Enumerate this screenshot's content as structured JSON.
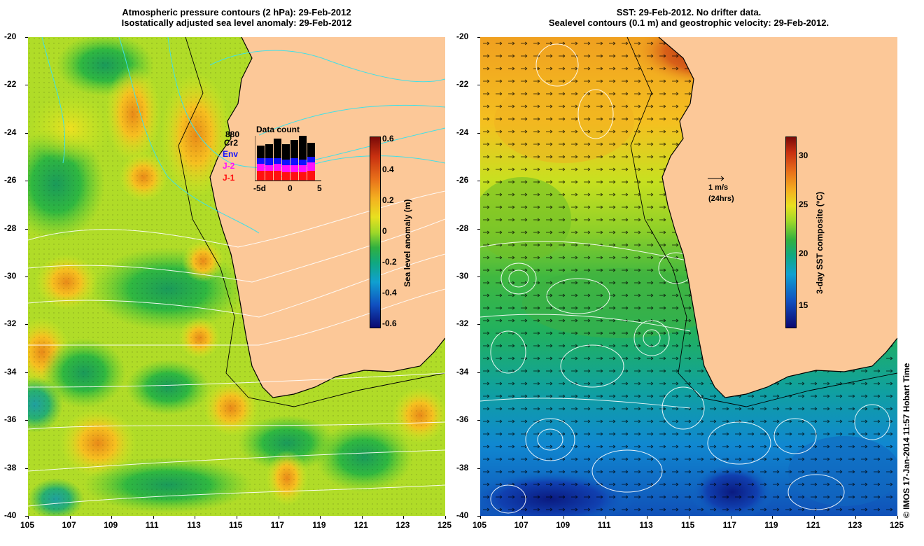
{
  "left_panel": {
    "title_line1": "Atmospheric pressure contours (2 hPa): 29-Feb-2012",
    "title_line2": "Isostatically adjusted sea level anomaly: 29-Feb-2012",
    "colorbar": {
      "label": "Sea level anomaly (m)",
      "ticks": [
        "0.6",
        "0.4",
        "0.2",
        "0",
        "-0.2",
        "-0.4",
        "-0.6"
      ]
    },
    "data_count": {
      "title": "Data count",
      "sources": [
        {
          "label": "880",
          "color": "#000000"
        },
        {
          "label": "Cr2",
          "color": "#000000"
        },
        {
          "label": "Env",
          "color": "#1010ff"
        },
        {
          "label": "J-2",
          "color": "#ff10ff"
        },
        {
          "label": "J-1",
          "color": "#ff1010"
        }
      ],
      "x_ticks": [
        "-5d",
        "0",
        "5"
      ]
    }
  },
  "right_panel": {
    "title_line1": "SST: 29-Feb-2012. No drifter data.",
    "title_line2": "Sealevel contours (0.1 m) and geostrophic velocity: 29-Feb-2012.",
    "velocity_legend": {
      "line1": "1 m/s",
      "line2": "(24hrs)"
    },
    "colorbar": {
      "label": "3-day SST composite (°C)",
      "ticks": [
        "30",
        "25",
        "20",
        "15"
      ]
    }
  },
  "axes": {
    "y_ticks": [
      "-20",
      "-22",
      "-24",
      "-26",
      "-28",
      "-30",
      "-32",
      "-34",
      "-36",
      "-38",
      "-40"
    ],
    "x_ticks": [
      "105",
      "107",
      "109",
      "111",
      "113",
      "115",
      "117",
      "119",
      "121",
      "123",
      "125"
    ]
  },
  "credit": "© IMOS 17-Jan-2014 11:57 Hobart Time",
  "colors": {
    "land": "#fcc898",
    "coast": "#000000",
    "contour_cyan": "#40e0e8",
    "contour_white": "#ffffff"
  }
}
